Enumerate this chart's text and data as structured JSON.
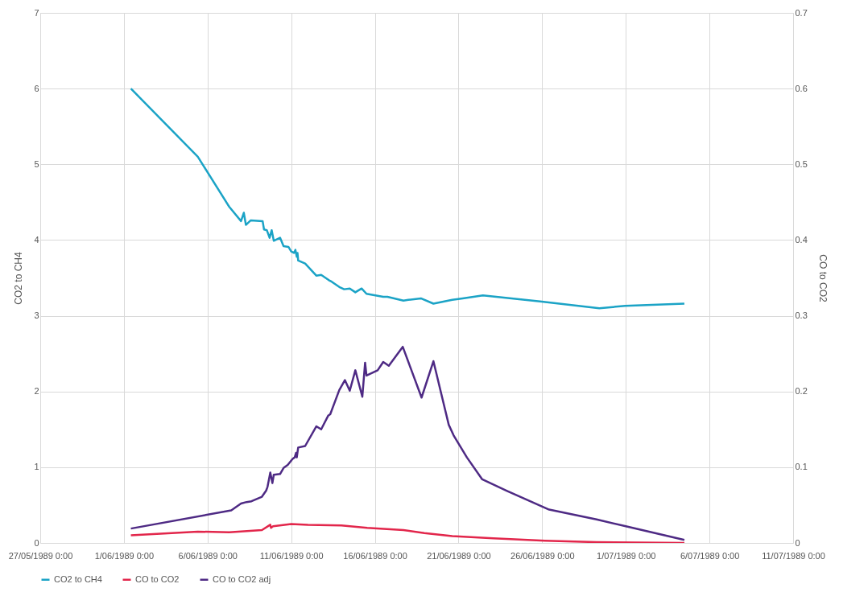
{
  "chart_data": {
    "type": "line",
    "ylabel": "CO2 to CH4",
    "y2label": "CO to CO2",
    "xlim": [
      "1989-05-27",
      "1989-07-11"
    ],
    "xticks": [
      {
        "value": "1989-05-27",
        "label": "27/05/1989 0:00"
      },
      {
        "value": "1989-06-01",
        "label": "1/06/1989 0:00"
      },
      {
        "value": "1989-06-06",
        "label": "6/06/1989 0:00"
      },
      {
        "value": "1989-06-11",
        "label": "11/06/1989 0:00"
      },
      {
        "value": "1989-06-16",
        "label": "16/06/1989 0:00"
      },
      {
        "value": "1989-06-21",
        "label": "21/06/1989 0:00"
      },
      {
        "value": "1989-06-26",
        "label": "26/06/1989 0:00"
      },
      {
        "value": "1989-07-01",
        "label": "1/07/1989 0:00"
      },
      {
        "value": "1989-07-06",
        "label": "6/07/1989 0:00"
      },
      {
        "value": "1989-07-11",
        "label": "11/07/1989 0:00"
      }
    ],
    "ylim": [
      0,
      7
    ],
    "yticks": [
      0,
      1,
      2,
      3,
      4,
      5,
      6,
      7
    ],
    "y2lim": [
      0,
      0.7
    ],
    "y2ticks": [
      0,
      0.1,
      0.2,
      0.3,
      0.4,
      0.5,
      0.6,
      0.7
    ],
    "grid": true,
    "legend": "bottom",
    "marker": "none",
    "line_style": "solid",
    "series": [
      {
        "name": "CO2 to CH4",
        "color": "#1ba3c6",
        "x": [
          "1989-06-01T10:00",
          "1989-06-05T10:00",
          "1989-06-07T07:00",
          "1989-06-08T00:00",
          "1989-06-08T04:00",
          "1989-06-08T07:00",
          "1989-06-08T14:00",
          "1989-06-09T07:00",
          "1989-06-09T09:00",
          "1989-06-09T13:00",
          "1989-06-09T17:00",
          "1989-06-09T20:00",
          "1989-06-09T23:00",
          "1989-06-10T08:00",
          "1989-06-10T13:00",
          "1989-06-10T20:00",
          "1989-06-11T00:00",
          "1989-06-11T04:00",
          "1989-06-11T06:00",
          "1989-06-11T08:00",
          "1989-06-11T09:00",
          "1989-06-11T10:00",
          "1989-06-11T20:00",
          "1989-06-12T12:00",
          "1989-06-12T19:00",
          "1989-06-13T06:00",
          "1989-06-13T10:00",
          "1989-06-13T21:00",
          "1989-06-14T04:00",
          "1989-06-14T12:00",
          "1989-06-14T20:00",
          "1989-06-15T05:00",
          "1989-06-15T12:00",
          "1989-06-16T12:00",
          "1989-06-16T18:00",
          "1989-06-17T17:00",
          "1989-06-18T00:00",
          "1989-06-18T18:00",
          "1989-06-19T12:00",
          "1989-06-20T15:00",
          "1989-06-21T06:00",
          "1989-06-22T11:00",
          "1989-06-25T21:00",
          "1989-06-29T10:00",
          "1989-06-30T23:00",
          "1989-07-04T12:00"
        ],
        "values": [
          6.0,
          5.1,
          4.44,
          4.25,
          4.36,
          4.2,
          4.26,
          4.25,
          4.14,
          4.13,
          4.03,
          4.13,
          3.99,
          4.03,
          3.92,
          3.91,
          3.85,
          3.83,
          3.87,
          3.78,
          3.83,
          3.73,
          3.69,
          3.53,
          3.54,
          3.47,
          3.45,
          3.38,
          3.35,
          3.36,
          3.31,
          3.36,
          3.29,
          3.25,
          3.25,
          3.2,
          3.21,
          3.23,
          3.16,
          3.21,
          3.23,
          3.27,
          3.19,
          3.1,
          3.13,
          3.16
        ]
      },
      {
        "name": "CO to CO2",
        "color": "#e2264b",
        "axis": "y2",
        "x": [
          "1989-06-01T10:00",
          "1989-06-05T10:00",
          "1989-06-07T07:00",
          "1989-06-09T06:00",
          "1989-06-09T18:00",
          "1989-06-09T19:00",
          "1989-06-09T22:00",
          "1989-06-11T00:00",
          "1989-06-12T00:00",
          "1989-06-14T00:00",
          "1989-06-15T13:00",
          "1989-06-17T17:00",
          "1989-06-18T23:00",
          "1989-06-20T15:00",
          "1989-06-23T02:00",
          "1989-06-26T04:00",
          "1989-06-29T06:00",
          "1989-07-04T12:00"
        ],
        "values": [
          0.01,
          0.015,
          0.014,
          0.017,
          0.024,
          0.02,
          0.022,
          0.025,
          0.024,
          0.023,
          0.02,
          0.017,
          0.013,
          0.009,
          0.006,
          0.003,
          0.001,
          0.0
        ]
      },
      {
        "name": "CO to CO2 adj",
        "color": "#4e2a84",
        "axis": "y2",
        "x": [
          "1989-06-01T10:00",
          "1989-06-07T10:00",
          "1989-06-08T00:00",
          "1989-06-08T08:00",
          "1989-06-08T15:00",
          "1989-06-09T06:00",
          "1989-06-09T12:00",
          "1989-06-09T14:00",
          "1989-06-09T18:00",
          "1989-06-09T21:00",
          "1989-06-09T23:00",
          "1989-06-10T08:00",
          "1989-06-10T13:00",
          "1989-06-10T19:00",
          "1989-06-11T02:00",
          "1989-06-11T05:00",
          "1989-06-11T07:00",
          "1989-06-11T08:00",
          "1989-06-11T10:00",
          "1989-06-11T20:00",
          "1989-06-12T12:00",
          "1989-06-12T19:00",
          "1989-06-13T05:00",
          "1989-06-13T08:00",
          "1989-06-13T21:00",
          "1989-06-14T05:00",
          "1989-06-14T12:00",
          "1989-06-14T20:00",
          "1989-06-15T06:00",
          "1989-06-15T10:00",
          "1989-06-15T12:00",
          "1989-06-16T04:00",
          "1989-06-16T12:00",
          "1989-06-16T20:00",
          "1989-06-17T16:00",
          "1989-06-18T19:00",
          "1989-06-19T12:00",
          "1989-06-20T10:00",
          "1989-06-20T17:00",
          "1989-06-21T12:00",
          "1989-06-22T10:00",
          "1989-06-23T21:00",
          "1989-06-26T10:00",
          "1989-06-29T06:00",
          "1989-07-01T00:00",
          "1989-07-04T12:00"
        ],
        "values": [
          0.019,
          0.043,
          0.052,
          0.054,
          0.055,
          0.061,
          0.069,
          0.074,
          0.093,
          0.079,
          0.09,
          0.091,
          0.099,
          0.103,
          0.111,
          0.113,
          0.119,
          0.113,
          0.126,
          0.128,
          0.154,
          0.15,
          0.168,
          0.17,
          0.202,
          0.215,
          0.201,
          0.228,
          0.193,
          0.238,
          0.221,
          0.228,
          0.239,
          0.234,
          0.259,
          0.192,
          0.24,
          0.156,
          0.142,
          0.113,
          0.084,
          0.069,
          0.044,
          0.031,
          0.022,
          0.004
        ]
      }
    ]
  }
}
